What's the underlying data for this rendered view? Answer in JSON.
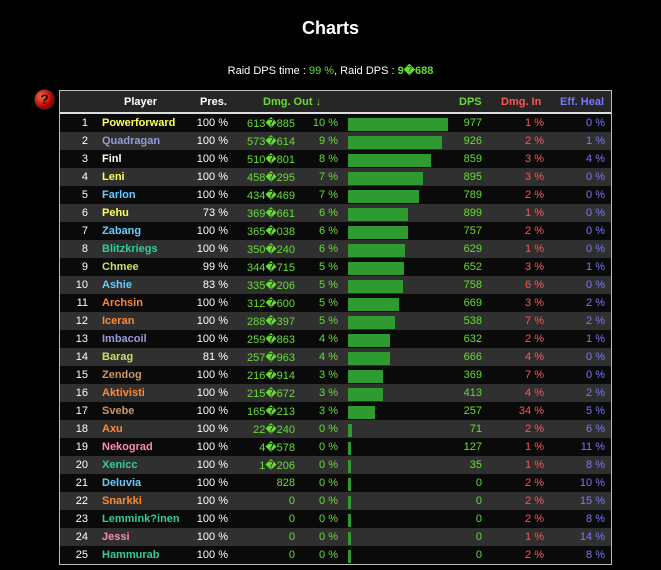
{
  "title": "Charts",
  "summary": {
    "label_time": "Raid DPS time : ",
    "time": "99 %",
    "sep": ", Raid DPS : ",
    "dps": "9�688"
  },
  "help_icon": "question-mark-icon",
  "colors": {
    "green": "#66dd33",
    "red": "#ff5555",
    "blue": "#7777ff",
    "bar": "#2f9a2f"
  },
  "headers": {
    "player": "Player",
    "pres": "Pres.",
    "dmg_out": "Dmg. Out ↓",
    "dps": "DPS",
    "dmg_in": "Dmg. In",
    "eff_heal": "Eff. Heal"
  },
  "rows": [
    {
      "rank": "1",
      "name": "Powerforward",
      "color": "#ffff55",
      "pres": "100 %",
      "dmg": "613�885",
      "pct": "10 %",
      "share": 10,
      "dps": "977",
      "in": "1 %",
      "heal": "0 %"
    },
    {
      "rank": "2",
      "name": "Quadragan",
      "color": "#9999dd",
      "pres": "100 %",
      "dmg": "573�614",
      "pct": "9 %",
      "share": 9.35,
      "dps": "926",
      "in": "2 %",
      "heal": "1 %"
    },
    {
      "rank": "3",
      "name": "Finl",
      "color": "#ffffff",
      "pres": "100 %",
      "dmg": "510�801",
      "pct": "8 %",
      "share": 8.32,
      "dps": "859",
      "in": "3 %",
      "heal": "4 %"
    },
    {
      "rank": "4",
      "name": "Leni",
      "color": "#ffff55",
      "pres": "100 %",
      "dmg": "458�295",
      "pct": "7 %",
      "share": 7.47,
      "dps": "895",
      "in": "3 %",
      "heal": "0 %"
    },
    {
      "rank": "5",
      "name": "Farlon",
      "color": "#66ccff",
      "pres": "100 %",
      "dmg": "434�469",
      "pct": "7 %",
      "share": 7.08,
      "dps": "789",
      "in": "2 %",
      "heal": "0 %"
    },
    {
      "rank": "6",
      "name": "Pehu",
      "color": "#ffff55",
      "pres": "73 %",
      "dmg": "369�661",
      "pct": "6 %",
      "share": 6.03,
      "dps": "899",
      "in": "1 %",
      "heal": "0 %"
    },
    {
      "rank": "7",
      "name": "Zabang",
      "color": "#66ccff",
      "pres": "100 %",
      "dmg": "365�038",
      "pct": "6 %",
      "share": 5.95,
      "dps": "757",
      "in": "2 %",
      "heal": "0 %"
    },
    {
      "rank": "8",
      "name": "Blitzkriegs",
      "color": "#33cc99",
      "pres": "100 %",
      "dmg": "350�240",
      "pct": "6 %",
      "share": 5.71,
      "dps": "629",
      "in": "1 %",
      "heal": "0 %"
    },
    {
      "rank": "9",
      "name": "Chmee",
      "color": "#ccdd66",
      "pres": "99 %",
      "dmg": "344�715",
      "pct": "5 %",
      "share": 5.62,
      "dps": "652",
      "in": "3 %",
      "heal": "1 %"
    },
    {
      "rank": "10",
      "name": "Ashie",
      "color": "#66ccff",
      "pres": "83 %",
      "dmg": "335�206",
      "pct": "5 %",
      "share": 5.47,
      "dps": "758",
      "in": "6 %",
      "heal": "0 %"
    },
    {
      "rank": "11",
      "name": "Archsin",
      "color": "#ff8833",
      "pres": "100 %",
      "dmg": "312�600",
      "pct": "5 %",
      "share": 5.1,
      "dps": "669",
      "in": "3 %",
      "heal": "2 %"
    },
    {
      "rank": "12",
      "name": "Iceran",
      "color": "#ff8833",
      "pres": "100 %",
      "dmg": "288�397",
      "pct": "5 %",
      "share": 4.7,
      "dps": "538",
      "in": "7 %",
      "heal": "2 %"
    },
    {
      "rank": "13",
      "name": "Imbacoil",
      "color": "#9999dd",
      "pres": "100 %",
      "dmg": "259�863",
      "pct": "4 %",
      "share": 4.24,
      "dps": "632",
      "in": "2 %",
      "heal": "1 %"
    },
    {
      "rank": "14",
      "name": "Barag",
      "color": "#ccdd66",
      "pres": "81 %",
      "dmg": "257�963",
      "pct": "4 %",
      "share": 4.2,
      "dps": "666",
      "in": "4 %",
      "heal": "0 %"
    },
    {
      "rank": "15",
      "name": "Zendog",
      "color": "#cc9966",
      "pres": "100 %",
      "dmg": "216�914",
      "pct": "3 %",
      "share": 3.53,
      "dps": "369",
      "in": "7 %",
      "heal": "0 %"
    },
    {
      "rank": "16",
      "name": "Aktivisti",
      "color": "#ff8833",
      "pres": "100 %",
      "dmg": "215�672",
      "pct": "3 %",
      "share": 3.52,
      "dps": "413",
      "in": "4 %",
      "heal": "2 %"
    },
    {
      "rank": "17",
      "name": "Svebe",
      "color": "#cc9966",
      "pres": "100 %",
      "dmg": "165�213",
      "pct": "3 %",
      "share": 2.69,
      "dps": "257",
      "in": "34 %",
      "heal": "5 %"
    },
    {
      "rank": "18",
      "name": "Axu",
      "color": "#ff8833",
      "pres": "100 %",
      "dmg": "22�240",
      "pct": "0 %",
      "share": 0.36,
      "dps": "71",
      "in": "2 %",
      "heal": "6 %"
    },
    {
      "rank": "19",
      "name": "Nekograd",
      "color": "#ff88bb",
      "pres": "100 %",
      "dmg": "4�578",
      "pct": "0 %",
      "share": 0.07,
      "dps": "127",
      "in": "1 %",
      "heal": "11 %"
    },
    {
      "rank": "20",
      "name": "Xenicc",
      "color": "#33cc99",
      "pres": "100 %",
      "dmg": "1�206",
      "pct": "0 %",
      "share": 0.02,
      "dps": "35",
      "in": "1 %",
      "heal": "8 %"
    },
    {
      "rank": "21",
      "name": "Deluvia",
      "color": "#66ccff",
      "pres": "100 %",
      "dmg": "828",
      "pct": "0 %",
      "share": 0.01,
      "dps": "0",
      "in": "2 %",
      "heal": "10 %"
    },
    {
      "rank": "22",
      "name": "Snarkki",
      "color": "#ff8833",
      "pres": "100 %",
      "dmg": "0",
      "pct": "0 %",
      "share": 0,
      "dps": "0",
      "in": "2 %",
      "heal": "15 %"
    },
    {
      "rank": "23",
      "name": "Lemmink?inen",
      "color": "#33cc99",
      "pres": "100 %",
      "dmg": "0",
      "pct": "0 %",
      "share": 0,
      "dps": "0",
      "in": "2 %",
      "heal": "8 %"
    },
    {
      "rank": "24",
      "name": "Jessi",
      "color": "#ff88bb",
      "pres": "100 %",
      "dmg": "0",
      "pct": "0 %",
      "share": 0,
      "dps": "0",
      "in": "1 %",
      "heal": "14 %"
    },
    {
      "rank": "25",
      "name": "Hammurab",
      "color": "#33cc99",
      "pres": "100 %",
      "dmg": "0",
      "pct": "0 %",
      "share": 0,
      "dps": "0",
      "in": "2 %",
      "heal": "8 %"
    }
  ]
}
